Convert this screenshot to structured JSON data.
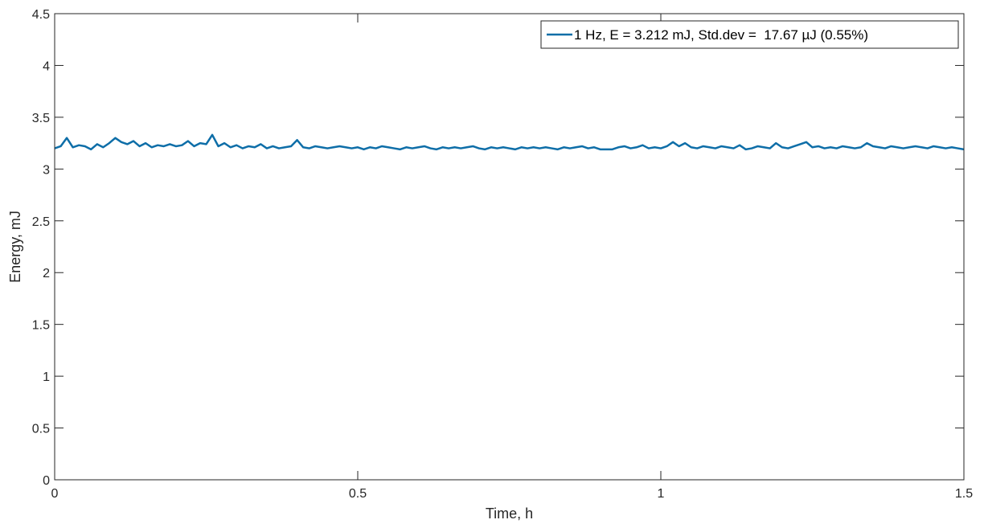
{
  "chart_data": {
    "type": "line",
    "title": "",
    "xlabel": "Time, h",
    "ylabel": "Energy, mJ",
    "xlim": [
      0,
      1.5
    ],
    "ylim": [
      0,
      4.5
    ],
    "xticks": [
      0,
      0.5,
      1,
      1.5
    ],
    "xtick_labels": [
      "0",
      "0.5",
      "1",
      "1.5"
    ],
    "yticks": [
      0,
      0.5,
      1,
      1.5,
      2,
      2.5,
      3,
      3.5,
      4,
      4.5
    ],
    "ytick_labels": [
      "0",
      "0.5",
      "1",
      "1.5",
      "2",
      "2.5",
      "3",
      "3.5",
      "4",
      "4.5"
    ],
    "grid": false,
    "legend_position": "top-right",
    "series": [
      {
        "name": "1 Hz, E = 3.212 mJ, Std.dev =  17.67 µJ (0.55%)",
        "color": "#0e6ea8",
        "x": [
          0,
          0.01,
          0.02,
          0.03,
          0.04,
          0.05,
          0.06,
          0.07,
          0.08,
          0.09,
          0.1,
          0.11,
          0.12,
          0.13,
          0.14,
          0.15,
          0.16,
          0.17,
          0.18,
          0.19,
          0.2,
          0.21,
          0.22,
          0.23,
          0.24,
          0.25,
          0.26,
          0.27,
          0.28,
          0.29,
          0.3,
          0.31,
          0.32,
          0.33,
          0.34,
          0.35,
          0.36,
          0.37,
          0.38,
          0.39,
          0.4,
          0.41,
          0.42,
          0.43,
          0.44,
          0.45,
          0.46,
          0.47,
          0.48,
          0.49,
          0.5,
          0.51,
          0.52,
          0.53,
          0.54,
          0.55,
          0.56,
          0.57,
          0.58,
          0.59,
          0.6,
          0.61,
          0.62,
          0.63,
          0.64,
          0.65,
          0.66,
          0.67,
          0.68,
          0.69,
          0.7,
          0.71,
          0.72,
          0.73,
          0.74,
          0.75,
          0.76,
          0.77,
          0.78,
          0.79,
          0.8,
          0.81,
          0.82,
          0.83,
          0.84,
          0.85,
          0.86,
          0.87,
          0.88,
          0.89,
          0.9,
          0.91,
          0.92,
          0.93,
          0.94,
          0.95,
          0.96,
          0.97,
          0.98,
          0.99,
          1.0,
          1.01,
          1.02,
          1.03,
          1.04,
          1.05,
          1.06,
          1.07,
          1.08,
          1.09,
          1.1,
          1.11,
          1.12,
          1.13,
          1.14,
          1.15,
          1.16,
          1.17,
          1.18,
          1.19,
          1.2,
          1.21,
          1.22,
          1.23,
          1.24,
          1.25,
          1.26,
          1.27,
          1.28,
          1.29,
          1.3,
          1.31,
          1.32,
          1.33,
          1.34,
          1.35,
          1.36,
          1.37,
          1.38,
          1.39,
          1.4,
          1.41,
          1.42,
          1.43,
          1.44,
          1.45,
          1.46,
          1.47,
          1.48,
          1.49,
          1.5
        ],
        "y": [
          3.2,
          3.22,
          3.3,
          3.21,
          3.23,
          3.22,
          3.19,
          3.24,
          3.21,
          3.25,
          3.3,
          3.26,
          3.24,
          3.27,
          3.22,
          3.25,
          3.21,
          3.23,
          3.22,
          3.24,
          3.22,
          3.23,
          3.27,
          3.22,
          3.25,
          3.24,
          3.33,
          3.22,
          3.25,
          3.21,
          3.23,
          3.2,
          3.22,
          3.21,
          3.24,
          3.2,
          3.22,
          3.2,
          3.21,
          3.22,
          3.28,
          3.21,
          3.2,
          3.22,
          3.21,
          3.2,
          3.21,
          3.22,
          3.21,
          3.2,
          3.21,
          3.19,
          3.21,
          3.2,
          3.22,
          3.21,
          3.2,
          3.19,
          3.21,
          3.2,
          3.21,
          3.22,
          3.2,
          3.19,
          3.21,
          3.2,
          3.21,
          3.2,
          3.21,
          3.22,
          3.2,
          3.19,
          3.21,
          3.2,
          3.21,
          3.2,
          3.19,
          3.21,
          3.2,
          3.21,
          3.2,
          3.21,
          3.2,
          3.19,
          3.21,
          3.2,
          3.21,
          3.22,
          3.2,
          3.21,
          3.19,
          3.19,
          3.19,
          3.21,
          3.22,
          3.2,
          3.21,
          3.23,
          3.2,
          3.21,
          3.2,
          3.22,
          3.26,
          3.22,
          3.25,
          3.21,
          3.2,
          3.22,
          3.21,
          3.2,
          3.22,
          3.21,
          3.2,
          3.23,
          3.19,
          3.2,
          3.22,
          3.21,
          3.2,
          3.25,
          3.21,
          3.2,
          3.22,
          3.24,
          3.26,
          3.21,
          3.22,
          3.2,
          3.21,
          3.2,
          3.22,
          3.21,
          3.2,
          3.21,
          3.25,
          3.22,
          3.21,
          3.2,
          3.22,
          3.21,
          3.2,
          3.21,
          3.22,
          3.21,
          3.2,
          3.22,
          3.21,
          3.2,
          3.21,
          3.2,
          3.19
        ]
      }
    ]
  }
}
